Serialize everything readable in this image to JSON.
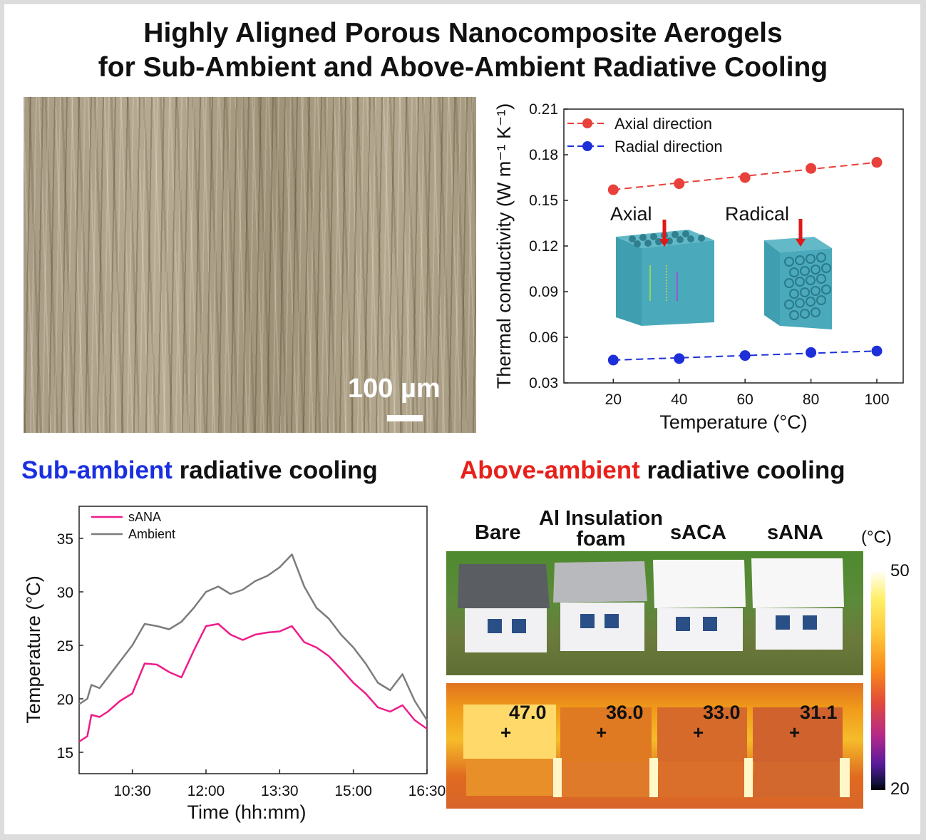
{
  "title": {
    "line1": "Highly Aligned Porous Nanocomposite Aerogels",
    "line2": "for Sub-Ambient and Above-Ambient Radiative Cooling"
  },
  "sem": {
    "scale_label": "100 µm"
  },
  "chart_conductivity": {
    "type": "line",
    "xlabel": "Temperature (°C)",
    "ylabel": "Thermal conductivity (W m⁻¹ K⁻¹)",
    "x": [
      20,
      40,
      60,
      80,
      100
    ],
    "xlim": [
      5,
      108
    ],
    "ylim": [
      0.03,
      0.21
    ],
    "xticks": [
      "20",
      "40",
      "60",
      "80",
      "100"
    ],
    "yticks": [
      "0.03",
      "0.06",
      "0.09",
      "0.12",
      "0.15",
      "0.18",
      "0.21"
    ],
    "series": [
      {
        "name": "Axial direction",
        "values": [
          0.157,
          0.161,
          0.165,
          0.171,
          0.175
        ],
        "color": "#e8403a"
      },
      {
        "name": "Radial direction",
        "values": [
          0.045,
          0.046,
          0.048,
          0.05,
          0.051
        ],
        "color": "#1d2fd8"
      }
    ],
    "inset_labels": {
      "axial": "Axial",
      "radial": "Radical"
    },
    "legend_position": "top-left"
  },
  "headings": {
    "sub": {
      "highlight": "Sub-ambient",
      "rest": " radiative cooling",
      "color": "#1a2fe0"
    },
    "above": {
      "highlight": "Above-ambient",
      "rest": " radiative cooling",
      "color": "#e8201a"
    }
  },
  "chart_data": {
    "type": "line",
    "xlabel": "Time (hh:mm)",
    "ylabel": "Temperature (°C)",
    "xticks": [
      "10:30",
      "12:00",
      "13:30",
      "15:00",
      "16:30"
    ],
    "yticks": [
      "15",
      "20",
      "25",
      "30",
      "35"
    ],
    "xlim": [
      "09:25",
      "16:30"
    ],
    "ylim": [
      13,
      38
    ],
    "series": [
      {
        "name": "sANA",
        "color": "#ee1c8a",
        "x": [
          "09:25",
          "09:35",
          "09:40",
          "09:50",
          "10:00",
          "10:15",
          "10:30",
          "10:45",
          "11:00",
          "11:15",
          "11:30",
          "11:45",
          "12:00",
          "12:15",
          "12:30",
          "12:45",
          "13:00",
          "13:15",
          "13:30",
          "13:45",
          "14:00",
          "14:15",
          "14:30",
          "14:45",
          "15:00",
          "15:15",
          "15:30",
          "15:45",
          "16:00",
          "16:15",
          "16:30"
        ],
        "values": [
          16.0,
          16.5,
          18.5,
          18.3,
          18.8,
          19.8,
          20.5,
          23.3,
          23.2,
          22.5,
          22.0,
          24.5,
          26.8,
          27.0,
          26.0,
          25.5,
          26.0,
          26.2,
          26.3,
          26.8,
          25.3,
          24.8,
          24.0,
          22.8,
          21.5,
          20.5,
          19.2,
          18.8,
          19.4,
          18.0,
          17.2
        ]
      },
      {
        "name": "Ambient",
        "color": "#7c7c7c",
        "x": [
          "09:25",
          "09:35",
          "09:40",
          "09:50",
          "10:00",
          "10:15",
          "10:30",
          "10:45",
          "11:00",
          "11:15",
          "11:30",
          "11:45",
          "12:00",
          "12:15",
          "12:30",
          "12:45",
          "13:00",
          "13:15",
          "13:30",
          "13:45",
          "14:00",
          "14:15",
          "14:30",
          "14:45",
          "15:00",
          "15:15",
          "15:30",
          "15:45",
          "16:00",
          "16:15",
          "16:30"
        ],
        "values": [
          19.5,
          20.0,
          21.3,
          21.0,
          22.0,
          23.5,
          25.0,
          27.0,
          26.8,
          26.5,
          27.2,
          28.5,
          30.0,
          30.5,
          29.8,
          30.2,
          31.0,
          31.5,
          32.3,
          33.5,
          30.5,
          28.5,
          27.5,
          26.0,
          24.8,
          23.3,
          21.5,
          20.8,
          22.3,
          19.8,
          18.0
        ]
      }
    ],
    "legend_position": "top-left"
  },
  "above_panel": {
    "labels": [
      "Bare",
      "Al Insulation foam",
      "sACA",
      "sANA"
    ],
    "temperatures": [
      "47.0",
      "36.0",
      "33.0",
      "31.1"
    ],
    "colorbar": {
      "unit": "(°C)",
      "max": "50",
      "min": "20"
    },
    "plus": "+"
  }
}
